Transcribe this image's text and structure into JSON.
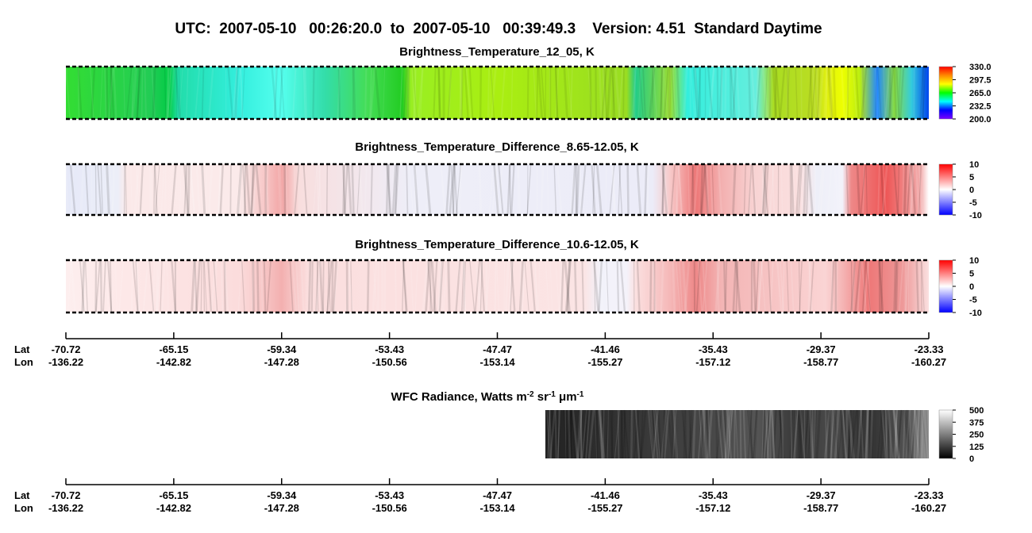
{
  "title": "UTC:  2007-05-10   00:26:20.0  to  2007-05-10   00:39:49.3    Version: 4.51  Standard Daytime",
  "chart_data": [
    {
      "type": "heatmap",
      "title": "Brightness_Temperature_12_05, K",
      "colorbar": {
        "lim": [
          200,
          330
        ],
        "ticks": [
          {
            "value": 200,
            "label": "200.0"
          },
          {
            "value": 232.5,
            "label": "232.5"
          },
          {
            "value": 265,
            "label": "265.0"
          },
          {
            "value": 297.5,
            "label": "297.5"
          },
          {
            "value": 330,
            "label": "330.0"
          }
        ],
        "colors": [
          "#7a00ff",
          "#0000ff",
          "#00ffff",
          "#00ff00",
          "#ffff00",
          "#ff8800",
          "#ff0000"
        ]
      }
    },
    {
      "type": "heatmap",
      "title": "Brightness_Temperature_Difference_8.65-12.05, K",
      "colorbar": {
        "lim": [
          -10,
          10
        ],
        "ticks": [
          -10,
          -5,
          0,
          5,
          10
        ],
        "colors": [
          "#0000ff",
          "#ffffff",
          "#ff0000"
        ]
      }
    },
    {
      "type": "heatmap",
      "title": "Brightness_Temperature_Difference_10.6-12.05, K",
      "colorbar": {
        "lim": [
          -10,
          10
        ],
        "ticks": [
          -10,
          -5,
          0,
          5,
          10
        ],
        "colors": [
          "#0000ff",
          "#ffffff",
          "#ff0000"
        ]
      }
    },
    {
      "type": "heatmap",
      "title_parts": [
        "WFC Radiance, Watts m",
        "-2",
        " sr",
        "-1",
        " μm",
        "-1"
      ],
      "colorbar": {
        "lim": [
          0,
          500
        ],
        "ticks": [
          0,
          125,
          250,
          375,
          500
        ],
        "colors": [
          "#000000",
          "#ffffff"
        ]
      }
    }
  ],
  "axes": [
    {
      "lat_label": "Lat",
      "lon_label": "Lon",
      "lat": [
        -70.72,
        -65.15,
        -59.34,
        -53.43,
        -47.47,
        -41.46,
        -35.43,
        -29.37,
        -23.33
      ],
      "lon": [
        -136.22,
        -142.82,
        -147.28,
        -150.56,
        -153.14,
        -155.27,
        -157.12,
        -158.77,
        -160.27
      ]
    },
    {
      "lat_label": "Lat",
      "lon_label": "Lon",
      "lat": [
        -70.72,
        -65.15,
        -59.34,
        -53.43,
        -47.47,
        -41.46,
        -35.43,
        -29.37,
        -23.33
      ],
      "lon": [
        -136.22,
        -142.82,
        -147.28,
        -150.56,
        -153.14,
        -155.27,
        -157.12,
        -158.77,
        -160.27
      ]
    }
  ]
}
